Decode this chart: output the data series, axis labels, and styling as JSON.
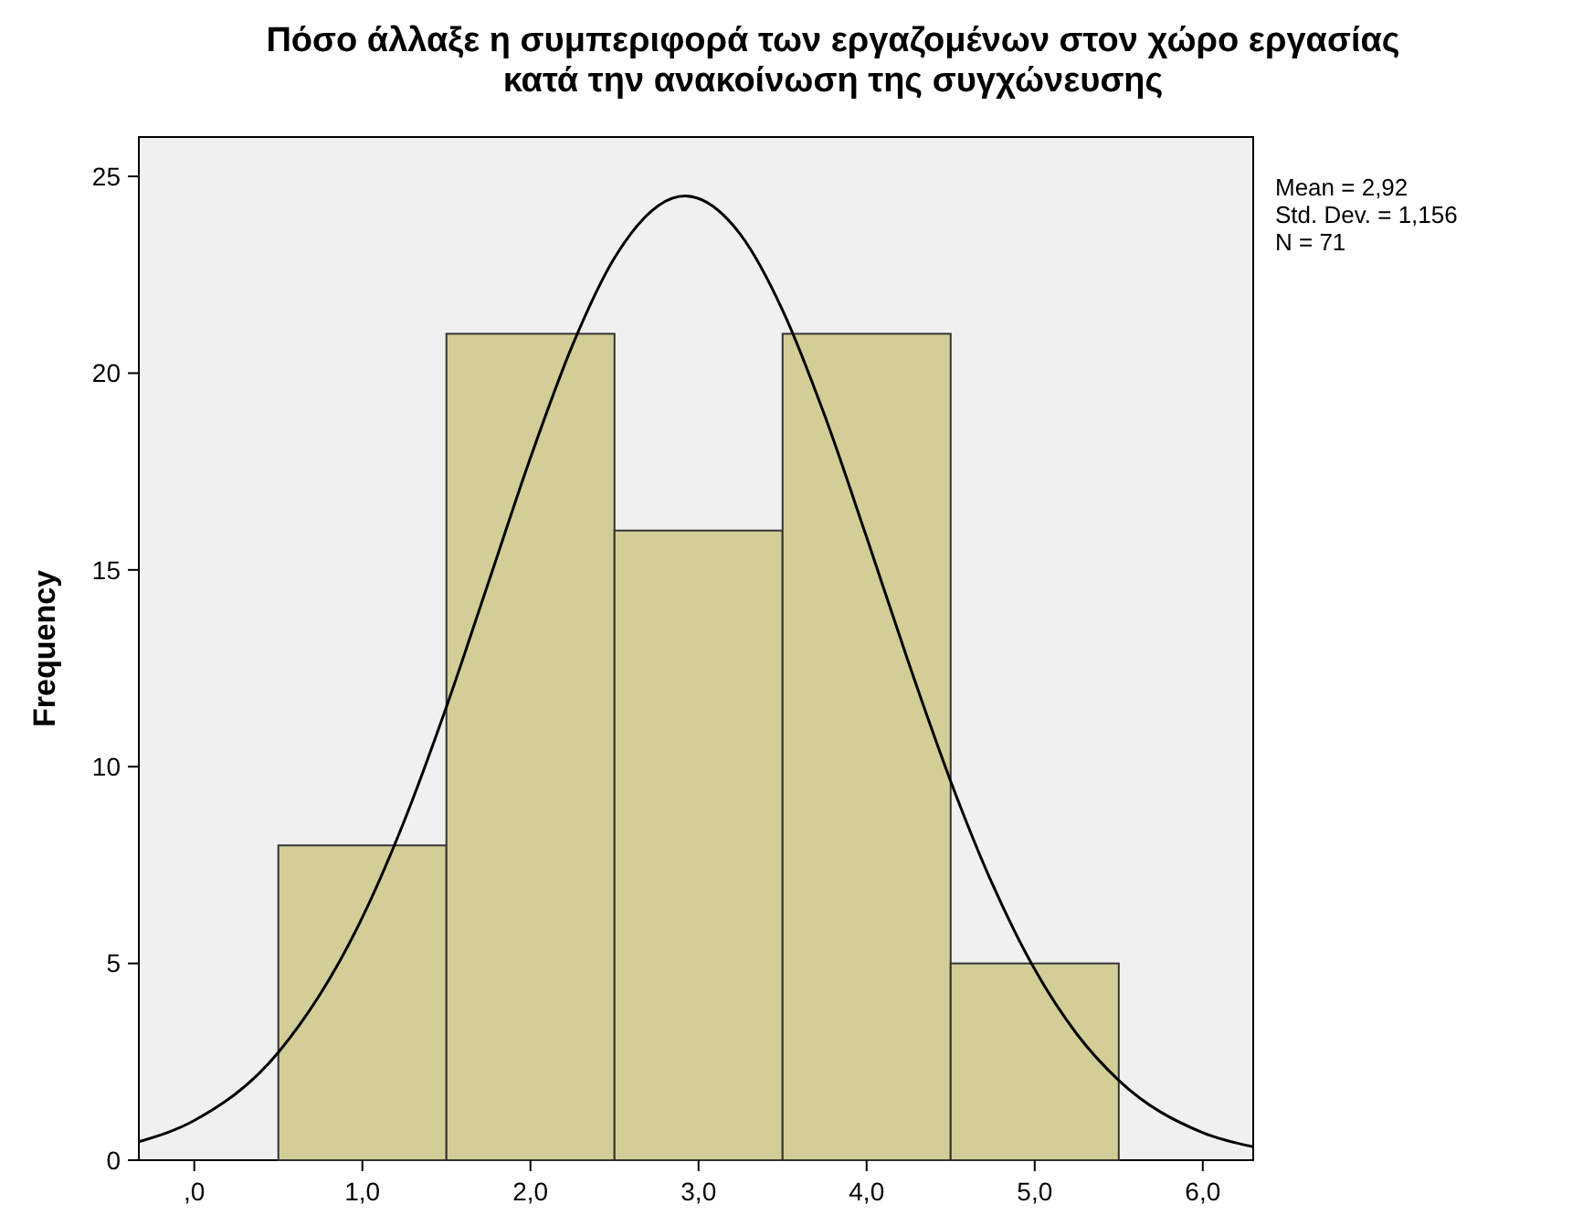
{
  "chart_data": {
    "type": "histogram",
    "title": "Πόσο άλλαξε η συμπεριφορά των εργαζομένων στον χώρο εργασίας\nκατά την ανακοίνωση της συγχώνευσης",
    "ylabel": "Frequency",
    "bins": [
      0.5,
      1.5,
      2.5,
      3.5,
      4.5,
      5.5
    ],
    "values": [
      8,
      21,
      16,
      21,
      5
    ],
    "color": "#d3ce97",
    "series": [
      {
        "type": "line",
        "color": "#000000",
        "x": [
          -0.33,
          0,
          0.5,
          1,
          1.25,
          1.5,
          1.75,
          2,
          2.25,
          2.5,
          2.92,
          3.25,
          3.5,
          3.75,
          4,
          4.25,
          4.5,
          4.75,
          5,
          5.25,
          5.5,
          6,
          6.3
        ],
        "values": [
          0.47,
          1.01,
          2.74,
          6.17,
          8.63,
          11.52,
          14.68,
          17.85,
          20.71,
          22.93,
          24.5,
          23.52,
          21.6,
          18.93,
          15.83,
          12.64,
          9.63,
          7.0,
          4.85,
          3.21,
          2.03,
          0.7,
          0.34
        ]
      }
    ],
    "xlim": [
      -0.33,
      6.3
    ],
    "ylim": [
      0,
      26
    ],
    "xticks": [
      {
        "value": 0,
        "label": ",0"
      },
      {
        "value": 1,
        "label": "1,0"
      },
      {
        "value": 2,
        "label": "2,0"
      },
      {
        "value": 3,
        "label": "3,0"
      },
      {
        "value": 4,
        "label": "4,0"
      },
      {
        "value": 5,
        "label": "5,0"
      },
      {
        "value": 6,
        "label": "6,0"
      }
    ],
    "yticks": [
      0,
      5,
      10,
      15,
      20,
      25
    ],
    "annotations": [
      "Mean = 2,92",
      "Std. Dev. = 1,156",
      "N = 71"
    ]
  }
}
